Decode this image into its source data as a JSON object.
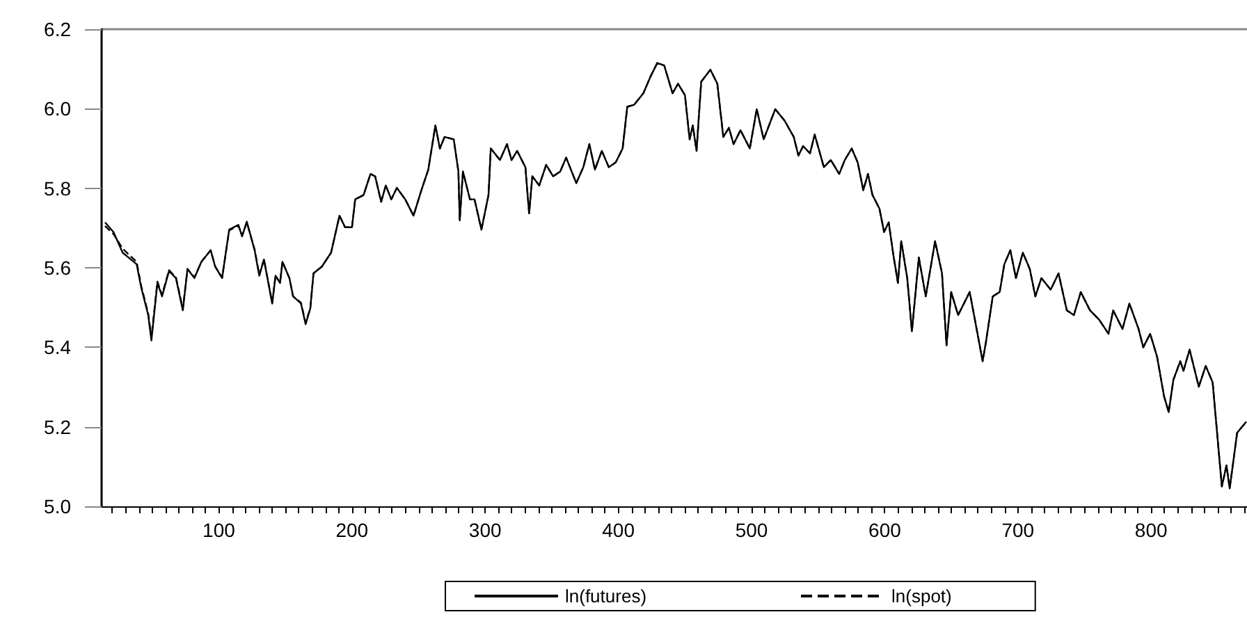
{
  "chart_data": {
    "type": "line",
    "x": [
      14.6,
      20.9,
      27.8,
      38.3,
      41.7,
      47,
      49.4,
      53.9,
      57.4,
      62.6,
      67.8,
      73,
      76.5,
      81.7,
      86.9,
      93.9,
      97.3,
      102.5,
      107.8,
      114.7,
      117.5,
      121,
      126.9,
      130.4,
      133.9,
      140.1,
      142.6,
      146,
      147.8,
      153,
      155.8,
      161.7,
      165.2,
      168.7,
      171.1,
      177.4,
      184.3,
      190.6,
      194.8,
      200,
      202.4,
      208.7,
      213.9,
      217.4,
      221.9,
      225.4,
      229.5,
      233.7,
      240,
      246.2,
      252.1,
      257.3,
      262.6,
      266,
      269.5,
      276.4,
      279.9,
      280.9,
      283.3,
      288.6,
      292,
      297.2,
      302.5,
      304.2,
      311.1,
      316.4,
      319.8,
      324,
      330.2,
      333,
      335.4,
      340.6,
      345.8,
      351,
      356.3,
      360.8,
      368.4,
      373.7,
      378.2,
      382.4,
      387.6,
      392.8,
      398,
      403.2,
      406.7,
      411.9,
      418.8,
      424,
      429.2,
      434.4,
      440.7,
      444.8,
      450,
      453.5,
      455.9,
      458.7,
      462.2,
      469.1,
      474.3,
      478.8,
      483,
      486.5,
      491.7,
      498.7,
      503.9,
      509.1,
      517.8,
      524.8,
      531.7,
      535.2,
      538.7,
      543.9,
      547.4,
      554.3,
      559.5,
      565.8,
      570,
      575.2,
      579.7,
      583.9,
      587.4,
      590.8,
      596,
      599.5,
      603,
      606.5,
      609.9,
      612.4,
      616.9,
      620.4,
      625.6,
      630.8,
      637.8,
      643,
      646.4,
      649.9,
      655.1,
      663.8,
      669,
      673.5,
      675.9,
      681.1,
      686.3,
      689.8,
      694.3,
      698.5,
      703.7,
      708.9,
      713.1,
      717.6,
      724.6,
      730.5,
      736.7,
      742,
      747.2,
      754.1,
      761.1,
      768,
      771.5,
      778.5,
      783.7,
      790.6,
      794.1,
      799.3,
      804.5,
      809.7,
      813.2,
      816.7,
      821.9,
      824.3,
      828.9,
      835.8,
      841,
      846.2,
      849.7,
      853.1,
      856.6,
      859,
      864.6,
      871.5
    ],
    "series": [
      {
        "name": "ln(futures)",
        "color": "#000000",
        "line_style": "solid",
        "values": [
          5.714,
          5.69,
          5.638,
          5.609,
          5.551,
          5.481,
          5.417,
          5.562,
          5.528,
          5.592,
          5.574,
          5.493,
          5.597,
          5.574,
          5.615,
          5.644,
          5.603,
          5.574,
          5.696,
          5.708,
          5.679,
          5.716,
          5.644,
          5.58,
          5.621,
          5.51,
          5.58,
          5.562,
          5.615,
          5.574,
          5.528,
          5.51,
          5.458,
          5.498,
          5.586,
          5.603,
          5.638,
          5.731,
          5.702,
          5.702,
          5.772,
          5.783,
          5.836,
          5.83,
          5.766,
          5.807,
          5.772,
          5.801,
          5.772,
          5.731,
          5.795,
          5.847,
          5.958,
          5.9,
          5.929,
          5.923,
          5.842,
          5.719,
          5.842,
          5.772,
          5.772,
          5.696,
          5.783,
          5.9,
          5.871,
          5.911,
          5.871,
          5.894,
          5.853,
          5.737,
          5.83,
          5.807,
          5.859,
          5.83,
          5.842,
          5.877,
          5.813,
          5.853,
          5.911,
          5.847,
          5.894,
          5.853,
          5.865,
          5.9,
          6.005,
          6.01,
          6.039,
          6.08,
          6.115,
          6.109,
          6.039,
          6.063,
          6.034,
          5.923,
          5.958,
          5.894,
          6.068,
          6.098,
          6.063,
          5.929,
          5.952,
          5.911,
          5.946,
          5.9,
          5.999,
          5.923,
          5.999,
          5.97,
          5.929,
          5.882,
          5.906,
          5.888,
          5.935,
          5.853,
          5.871,
          5.836,
          5.871,
          5.9,
          5.865,
          5.795,
          5.836,
          5.783,
          5.749,
          5.69,
          5.714,
          5.632,
          5.562,
          5.667,
          5.574,
          5.44,
          5.626,
          5.528,
          5.667,
          5.586,
          5.405,
          5.539,
          5.481,
          5.539,
          5.446,
          5.365,
          5.411,
          5.528,
          5.539,
          5.609,
          5.644,
          5.574,
          5.638,
          5.597,
          5.528,
          5.574,
          5.545,
          5.586,
          5.493,
          5.481,
          5.539,
          5.493,
          5.469,
          5.434,
          5.493,
          5.446,
          5.51,
          5.446,
          5.4,
          5.434,
          5.376,
          5.277,
          5.237,
          5.318,
          5.365,
          5.341,
          5.394,
          5.301,
          5.353,
          5.312,
          5.179,
          5.05,
          5.103,
          5.045,
          5.185,
          5.213
        ]
      },
      {
        "name": "ln(spot)",
        "color": "#000000",
        "line_style": "dashed",
        "values": [
          5.705,
          5.685,
          5.648,
          5.615,
          5.555,
          5.485,
          5.425,
          5.565,
          5.532,
          5.594,
          5.576,
          5.497,
          5.597,
          5.576,
          5.615,
          5.644,
          5.603,
          5.576,
          5.694,
          5.706,
          5.681,
          5.714,
          5.646,
          5.582,
          5.621,
          5.512,
          5.58,
          5.562,
          5.615,
          5.574,
          5.528,
          5.512,
          5.462,
          5.498,
          5.586,
          5.603,
          5.638,
          5.731,
          5.702,
          5.702,
          5.772,
          5.783,
          5.836,
          5.83,
          5.766,
          5.807,
          5.772,
          5.801,
          5.772,
          5.731,
          5.795,
          5.847,
          5.958,
          5.9,
          5.929,
          5.923,
          5.842,
          5.719,
          5.842,
          5.772,
          5.772,
          5.696,
          5.783,
          5.9,
          5.871,
          5.911,
          5.871,
          5.894,
          5.853,
          5.737,
          5.83,
          5.807,
          5.859,
          5.83,
          5.842,
          5.877,
          5.813,
          5.853,
          5.911,
          5.847,
          5.894,
          5.853,
          5.865,
          5.9,
          6.005,
          6.01,
          6.039,
          6.08,
          6.115,
          6.109,
          6.039,
          6.063,
          6.034,
          5.923,
          5.958,
          5.894,
          6.068,
          6.098,
          6.063,
          5.929,
          5.952,
          5.911,
          5.946,
          5.9,
          5.999,
          5.923,
          5.999,
          5.97,
          5.929,
          5.882,
          5.906,
          5.888,
          5.935,
          5.853,
          5.871,
          5.836,
          5.871,
          5.9,
          5.865,
          5.795,
          5.836,
          5.783,
          5.749,
          5.69,
          5.714,
          5.632,
          5.562,
          5.667,
          5.574,
          5.44,
          5.626,
          5.528,
          5.667,
          5.586,
          5.405,
          5.539,
          5.481,
          5.539,
          5.446,
          5.365,
          5.411,
          5.528,
          5.539,
          5.609,
          5.644,
          5.574,
          5.638,
          5.597,
          5.528,
          5.574,
          5.545,
          5.586,
          5.493,
          5.481,
          5.539,
          5.493,
          5.469,
          5.434,
          5.493,
          5.446,
          5.51,
          5.446,
          5.4,
          5.434,
          5.376,
          5.277,
          5.237,
          5.318,
          5.365,
          5.341,
          5.394,
          5.301,
          5.353,
          5.312,
          5.179,
          5.05,
          5.103,
          5.045,
          5.185,
          5.213
        ]
      }
    ],
    "xlim": [
      12,
      872
    ],
    "xticks": [
      100,
      200,
      300,
      400,
      500,
      600,
      700,
      800
    ],
    "ylim": [
      5.0,
      6.2
    ],
    "yticks": [
      {
        "value": 5,
        "label": "5.0"
      },
      5.2,
      5.4,
      5.6,
      5.8,
      {
        "value": 6,
        "label": "6.0"
      },
      {
        "value": 6.2,
        "label": "6.2"
      }
    ],
    "grid": false,
    "legend": "bottom",
    "marker": "none"
  }
}
